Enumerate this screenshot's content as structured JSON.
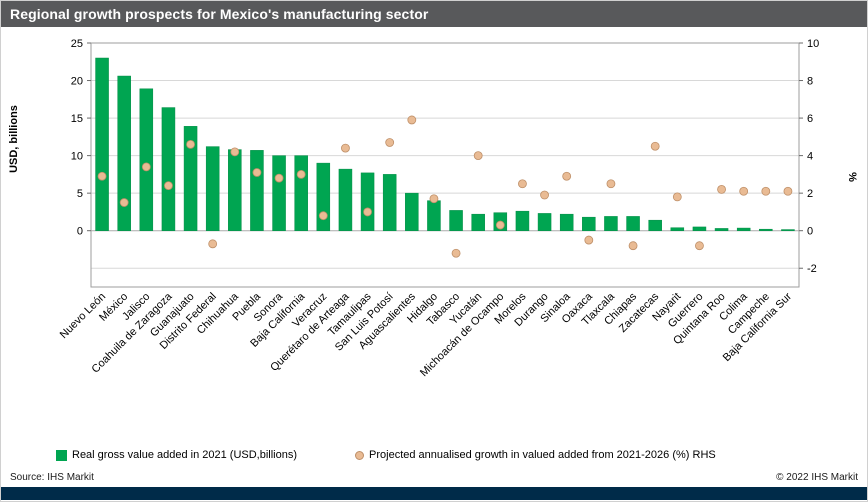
{
  "header": {
    "title": "Regional growth prospects for Mexico's manufacturing sector"
  },
  "chart_data": {
    "type": "bar+scatter",
    "title": "Regional growth prospects for Mexico's manufacturing sector",
    "categories": [
      "Nuevo León",
      "México",
      "Jalisco",
      "Coahuila de Zaragoza",
      "Guanajuato",
      "Distrito Federal",
      "Chihuahua",
      "Puebla",
      "Sonora",
      "Baja California",
      "Veracruz",
      "Querétaro de Arteaga",
      "Tamaulipas",
      "San Luis Potosí",
      "Aguascalientes",
      "Hidalgo",
      "Tabasco",
      "Yucatán",
      "Michoacán de Ocampo",
      "Morelos",
      "Durango",
      "Sinaloa",
      "Oaxaca",
      "Tlaxcala",
      "Chiapas",
      "Zacatecas",
      "Nayarit",
      "Guerrero",
      "Quintana Roo",
      "Colima",
      "Campeche",
      "Baja California Sur"
    ],
    "series": [
      {
        "name": "Real gross value added in 2021 (USD,billions)",
        "type": "bar",
        "axis": "left",
        "color": "#00A551",
        "values": [
          23.0,
          20.6,
          18.9,
          16.4,
          13.9,
          11.2,
          10.8,
          10.7,
          10.0,
          10.0,
          9.0,
          8.2,
          7.7,
          7.5,
          5.0,
          4.0,
          2.7,
          2.2,
          2.4,
          2.6,
          2.3,
          2.2,
          1.8,
          1.9,
          1.9,
          1.4,
          0.4,
          0.5,
          0.3,
          0.35,
          0.2,
          0.15
        ]
      },
      {
        "name": "Projected annualised growth in valued added from 2021-2026 (%) RHS",
        "type": "scatter",
        "axis": "right",
        "color": "#E9BB94",
        "values": [
          2.9,
          1.5,
          3.4,
          2.4,
          4.6,
          -0.7,
          4.2,
          3.1,
          2.8,
          3.0,
          0.8,
          4.4,
          1.0,
          4.7,
          5.9,
          1.7,
          -1.2,
          4.0,
          0.3,
          2.5,
          1.9,
          2.9,
          -0.5,
          2.5,
          -0.8,
          4.5,
          1.8,
          -0.8,
          2.2,
          2.1,
          2.1,
          2.1
        ]
      }
    ],
    "left_axis": {
      "label": "USD, billions",
      "min": -7.5,
      "max": 25,
      "ticks": [
        25,
        20,
        15,
        10,
        5,
        0
      ]
    },
    "right_axis": {
      "label": "%",
      "min": -3,
      "max": 10,
      "ticks": [
        10,
        8,
        6,
        4,
        2,
        0,
        -2
      ]
    },
    "grid": true,
    "legend_position": "bottom"
  },
  "legend": {
    "bar_label": "Real gross value added in 2021 (USD,billions)",
    "scatter_label": "Projected annualised growth in valued added from 2021-2026 (%) RHS"
  },
  "footer": {
    "source": "Source:  IHS Markit",
    "copyright": "© 2022 IHS Markit"
  },
  "colors": {
    "header_bg": "#58595B",
    "header_text": "#FFFFFF",
    "bar": "#00A551",
    "bar_edge": "#008C45",
    "dot": "#E9BB94",
    "dot_edge": "#BE8F68",
    "gridline": "#D8D8D8",
    "frame": "#9E9E9E",
    "brand_bar": "#002B49"
  }
}
